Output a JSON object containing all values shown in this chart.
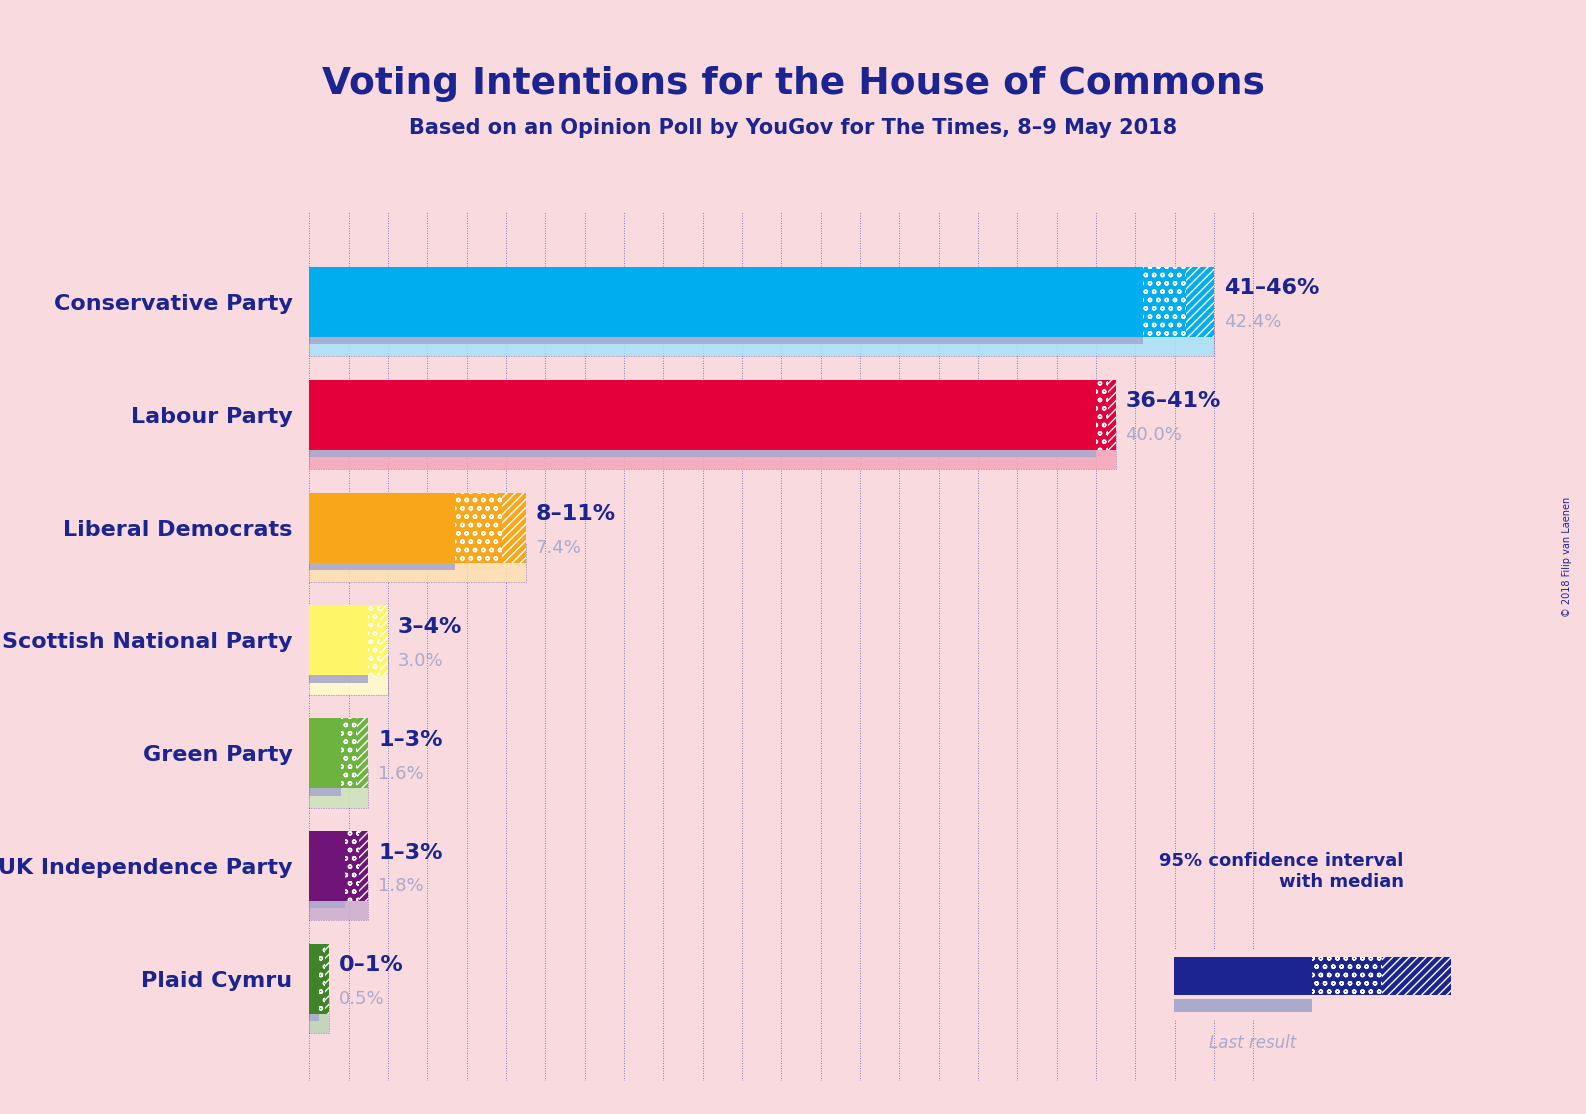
{
  "title": "Voting Intentions for the House of Commons",
  "subtitle": "Based on an Opinion Poll by YouGov for The Times, 8–9 May 2018",
  "copyright": "© 2018 Filip van Laenen",
  "background_color": "#F9DADE",
  "title_color": "#1B2490",
  "subtitle_color": "#1B2490",
  "parties": [
    {
      "name": "Conservative Party",
      "median": 42.4,
      "ci_low": 41,
      "ci_high": 46,
      "last_result": 42.4,
      "color": "#00ADEF",
      "range_label": "41–46%",
      "median_label": "42.4%"
    },
    {
      "name": "Labour Party",
      "median": 40.0,
      "ci_low": 36,
      "ci_high": 41,
      "last_result": 40.0,
      "color": "#E4003B",
      "range_label": "36–41%",
      "median_label": "40.0%"
    },
    {
      "name": "Liberal Democrats",
      "median": 7.4,
      "ci_low": 8,
      "ci_high": 11,
      "last_result": 7.4,
      "color": "#FAA61A",
      "range_label": "8–11%",
      "median_label": "7.4%"
    },
    {
      "name": "Scottish National Party",
      "median": 3.0,
      "ci_low": 3,
      "ci_high": 4,
      "last_result": 3.0,
      "color": "#FFF568",
      "range_label": "3–4%",
      "median_label": "3.0%"
    },
    {
      "name": "Green Party",
      "median": 1.6,
      "ci_low": 1,
      "ci_high": 3,
      "last_result": 1.6,
      "color": "#6DB33F",
      "range_label": "1–3%",
      "median_label": "1.6%"
    },
    {
      "name": "UK Independence Party",
      "median": 1.8,
      "ci_low": 1,
      "ci_high": 3,
      "last_result": 1.8,
      "color": "#70147A",
      "range_label": "1–3%",
      "median_label": "1.8%"
    },
    {
      "name": "Plaid Cymru",
      "median": 0.5,
      "ci_low": 0,
      "ci_high": 1,
      "last_result": 0.5,
      "color": "#3F8428",
      "range_label": "0–1%",
      "median_label": "0.5%"
    }
  ],
  "xmax": 50,
  "grid_color": "#1B2490",
  "legend_ci_color": "#1B2490",
  "legend_last_color": "#AAAACC"
}
